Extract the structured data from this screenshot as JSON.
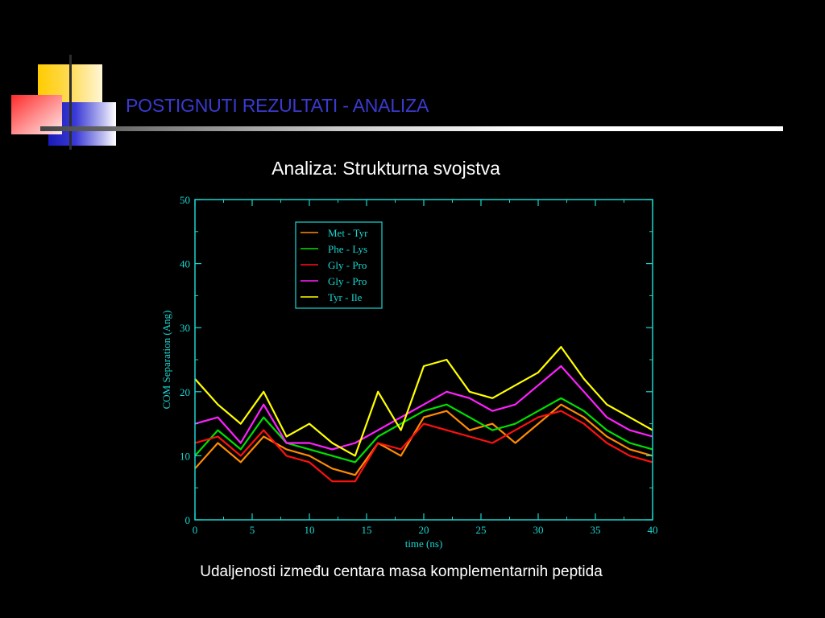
{
  "slide": {
    "title": "POSTIGNUTI REZULTATI - ANALIZA",
    "subtitle": "Analiza: Strukturna svojstva",
    "caption": "Udaljenosti između centara masa komplementarnih peptida"
  },
  "colors": {
    "background": "#000000",
    "title": "#3a3ad0",
    "axis": "#19d6d0",
    "series": [
      "#ff8c00",
      "#00e000",
      "#ff1010",
      "#ff20ff",
      "#ffff00"
    ]
  },
  "chart_data": {
    "type": "line",
    "title": "",
    "xlabel": "time (ns)",
    "ylabel": "COM Separation (Ang)",
    "xlim": [
      0,
      40
    ],
    "ylim": [
      0,
      50
    ],
    "xticks": [
      0,
      5,
      10,
      15,
      20,
      25,
      30,
      35,
      40
    ],
    "yticks": [
      0,
      10,
      20,
      30,
      40,
      50
    ],
    "legend_position": "top-left inside plot",
    "x": [
      0,
      2,
      4,
      6,
      8,
      10,
      12,
      14,
      16,
      18,
      20,
      22,
      24,
      26,
      28,
      30,
      32,
      34,
      36,
      38,
      40
    ],
    "series": [
      {
        "name": "Met - Tyr",
        "color": "#ff8c00",
        "values": [
          8,
          12,
          9,
          13,
          11,
          10,
          8,
          7,
          12,
          10,
          16,
          17,
          14,
          15,
          12,
          15,
          18,
          16,
          13,
          11,
          10
        ]
      },
      {
        "name": "Phe - Lys",
        "color": "#00e000",
        "values": [
          10,
          14,
          11,
          16,
          12,
          11,
          10,
          9,
          13,
          15,
          17,
          18,
          16,
          14,
          15,
          17,
          19,
          17,
          14,
          12,
          11
        ]
      },
      {
        "name": "Gly - Pro",
        "color": "#ff1010",
        "values": [
          12,
          13,
          10,
          14,
          10,
          9,
          6,
          6,
          12,
          11,
          15,
          14,
          13,
          12,
          14,
          16,
          17,
          15,
          12,
          10,
          9
        ]
      },
      {
        "name": "Gly - Pro",
        "color": "#ff20ff",
        "values": [
          15,
          16,
          12,
          18,
          12,
          12,
          11,
          12,
          14,
          16,
          18,
          20,
          19,
          17,
          18,
          21,
          24,
          20,
          16,
          14,
          13
        ]
      },
      {
        "name": "Tyr - Ile",
        "color": "#ffff00",
        "values": [
          22,
          18,
          15,
          20,
          13,
          15,
          12,
          10,
          20,
          14,
          24,
          25,
          20,
          19,
          21,
          23,
          27,
          22,
          18,
          16,
          14
        ]
      }
    ]
  }
}
